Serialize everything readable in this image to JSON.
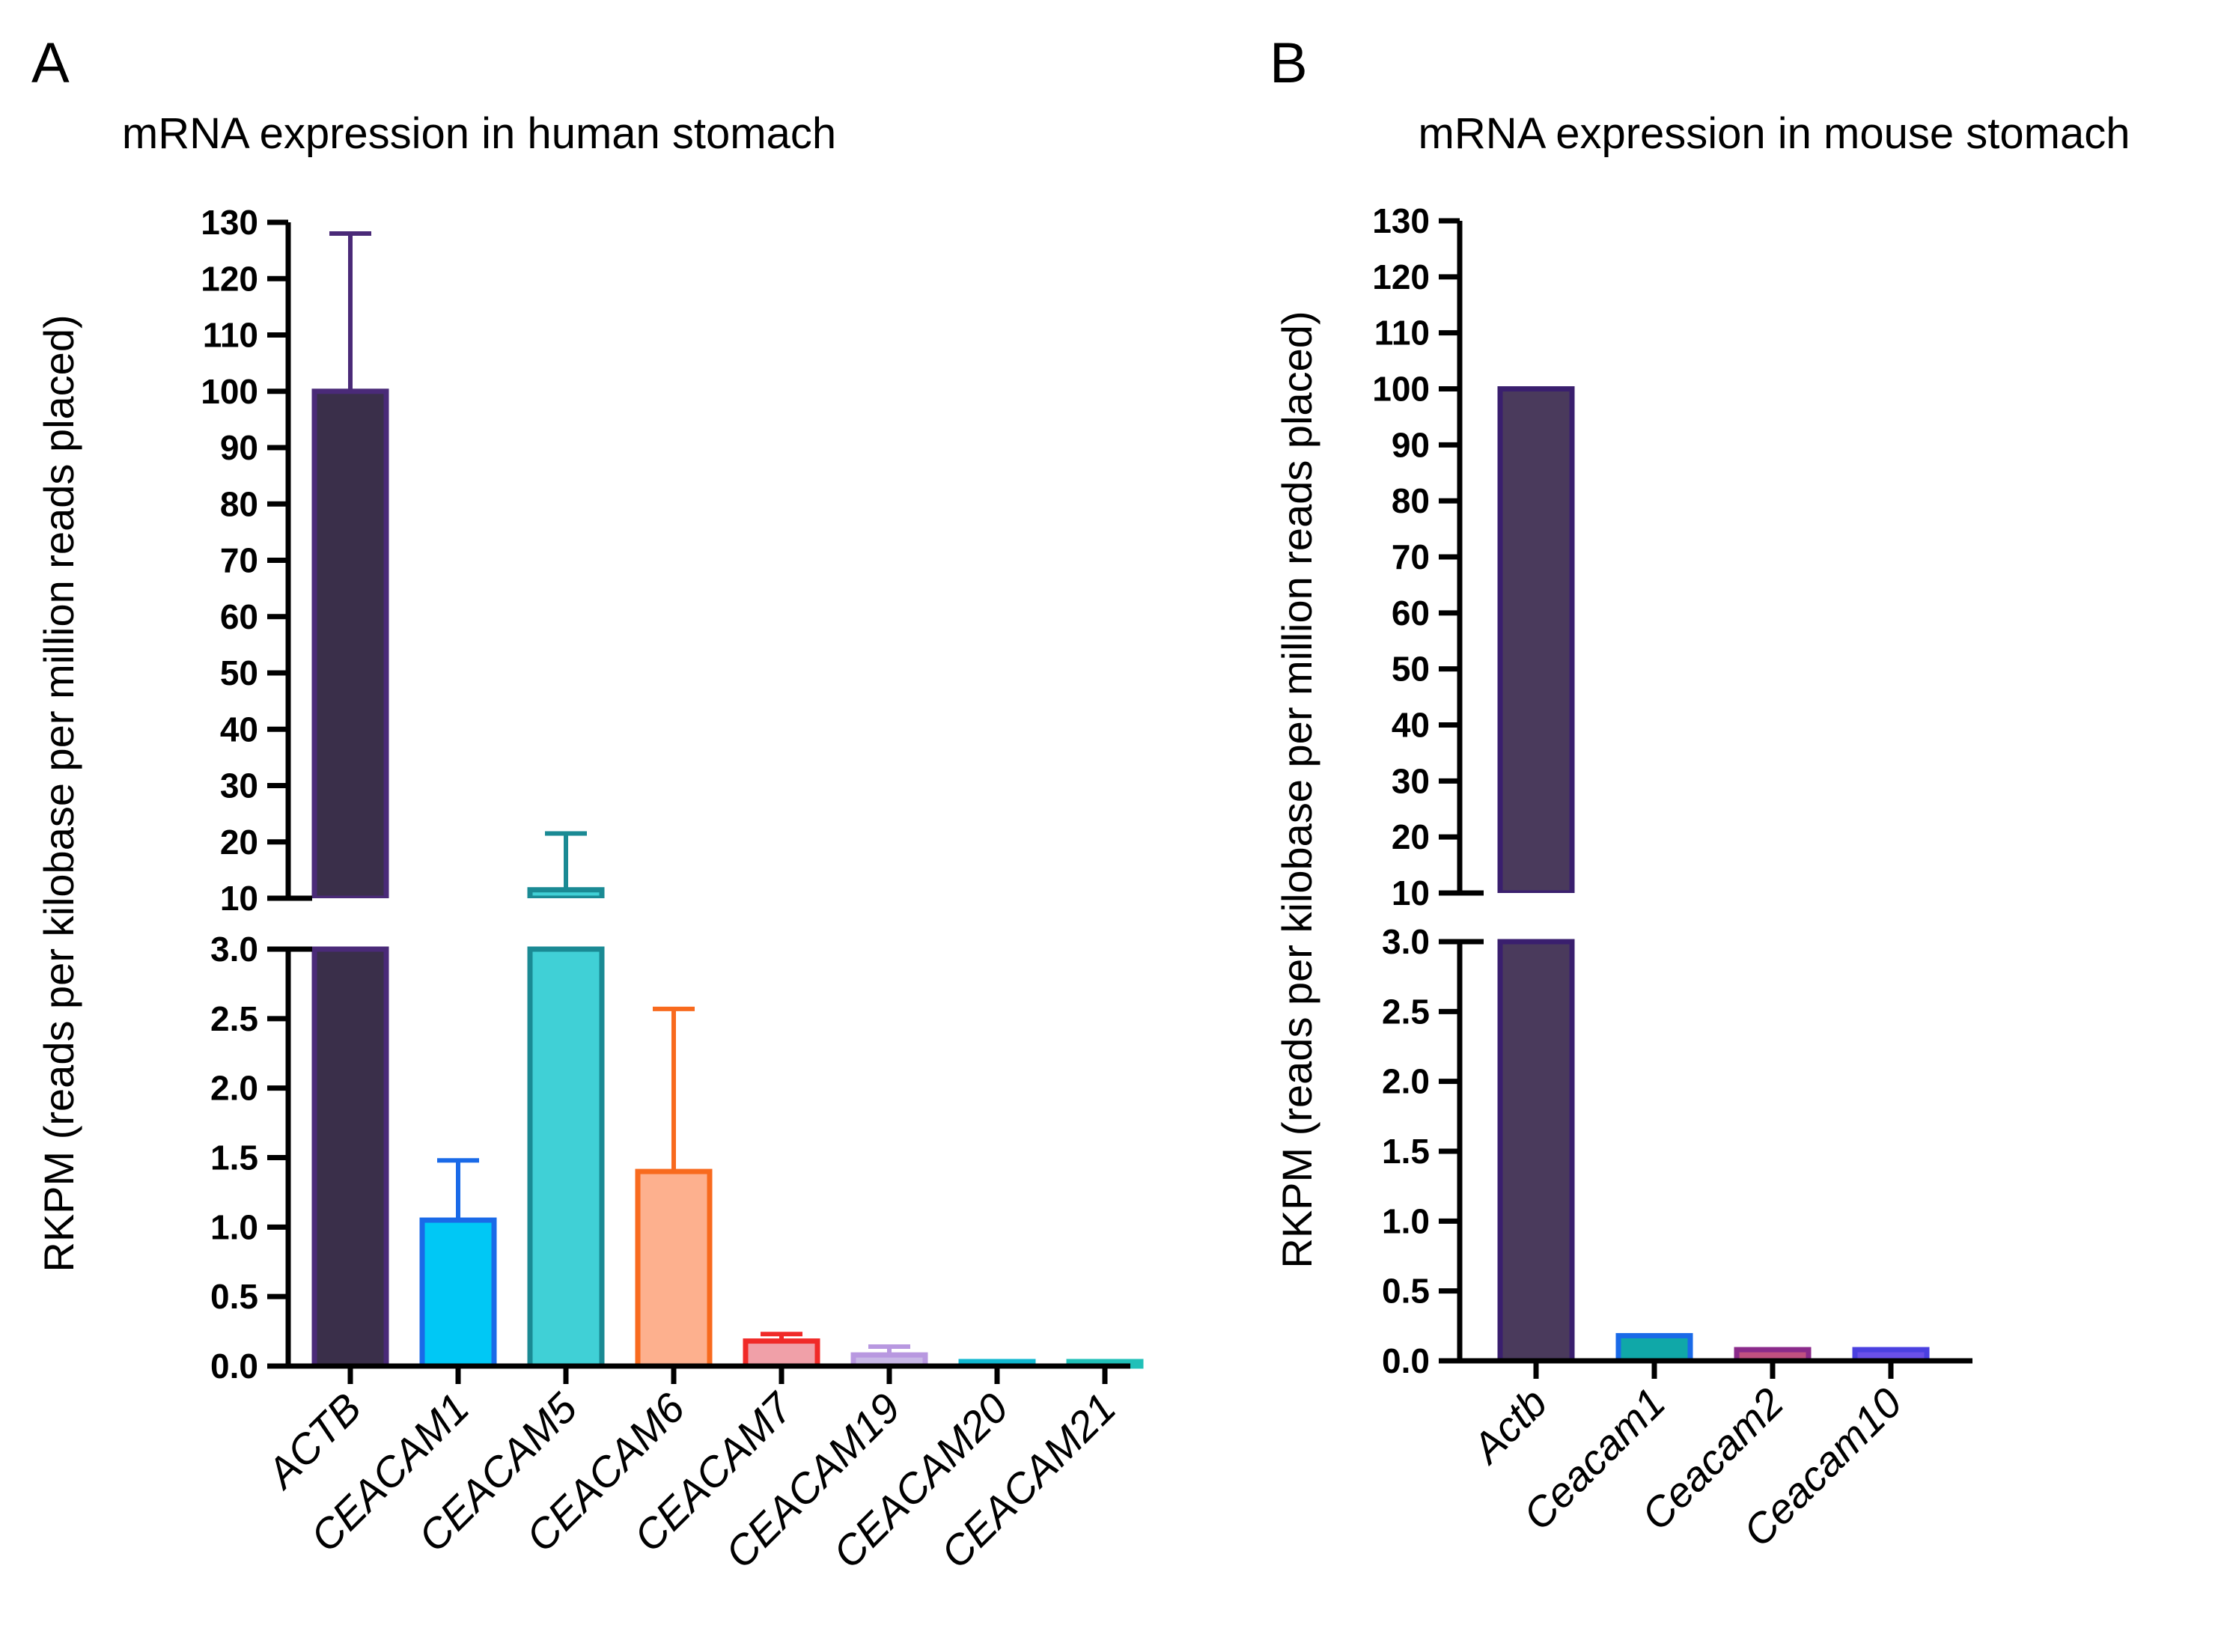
{
  "chart_data": [
    {
      "type": "bar",
      "panel": "A",
      "title": "mRNA expression in human stomach",
      "ylabel": "RKPM (reads per kilobase per million reads placed)",
      "xlabel": "",
      "y_axis_break": {
        "lower_range": [
          0,
          3.0
        ],
        "upper_range": [
          10,
          130
        ]
      },
      "lower_ticks": [
        0.0,
        0.5,
        1.0,
        1.5,
        2.0,
        2.5,
        3.0
      ],
      "upper_ticks": [
        10,
        20,
        30,
        40,
        50,
        60,
        70,
        80,
        90,
        100,
        110,
        120,
        130
      ],
      "categories": [
        "ACTB",
        "CEACAM1",
        "CEACAM5",
        "CEACAM6",
        "CEACAM7",
        "CEACAM19",
        "CEACAM20",
        "CEACAM21"
      ],
      "values": [
        100,
        1.05,
        11.5,
        1.4,
        0.18,
        0.08,
        0.01,
        0.01
      ],
      "errors": [
        28,
        0.43,
        10,
        1.17,
        0.05,
        0.06,
        0.01,
        0.01
      ],
      "fill_colors": [
        "#3a2f4a",
        "#00c8f5",
        "#40d0d6",
        "#fdb08e",
        "#f0a0a8",
        "#c8b8e6",
        "#10c8d8",
        "#30d0c8"
      ],
      "edge_colors": [
        "#4a2a78",
        "#1a6ae8",
        "#1a8a94",
        "#f86a1e",
        "#f02a28",
        "#b898e0",
        "#10b8d0",
        "#20c0b8"
      ]
    },
    {
      "type": "bar",
      "panel": "B",
      "title": "mRNA expression in mouse stomach",
      "ylabel": "RKPM (reads per kilobase per million reads placed)",
      "xlabel": "",
      "y_axis_break": {
        "lower_range": [
          0,
          3.0
        ],
        "upper_range": [
          10,
          130
        ]
      },
      "lower_ticks": [
        0.0,
        0.5,
        1.0,
        1.5,
        2.0,
        2.5,
        3.0
      ],
      "upper_ticks": [
        10,
        20,
        30,
        40,
        50,
        60,
        70,
        80,
        90,
        100,
        110,
        120,
        130
      ],
      "categories": [
        "Actb",
        "Ceacam1",
        "Ceacam2",
        "Ceacam10"
      ],
      "values": [
        100,
        0.18,
        0.08,
        0.08
      ],
      "errors": [
        0,
        0,
        0,
        0
      ],
      "fill_colors": [
        "#4a3a5c",
        "#10a8a8",
        "#c05080",
        "#6a50e8"
      ],
      "edge_colors": [
        "#3a1f6e",
        "#1a6ae8",
        "#8a2a8a",
        "#4a40e0"
      ]
    }
  ]
}
